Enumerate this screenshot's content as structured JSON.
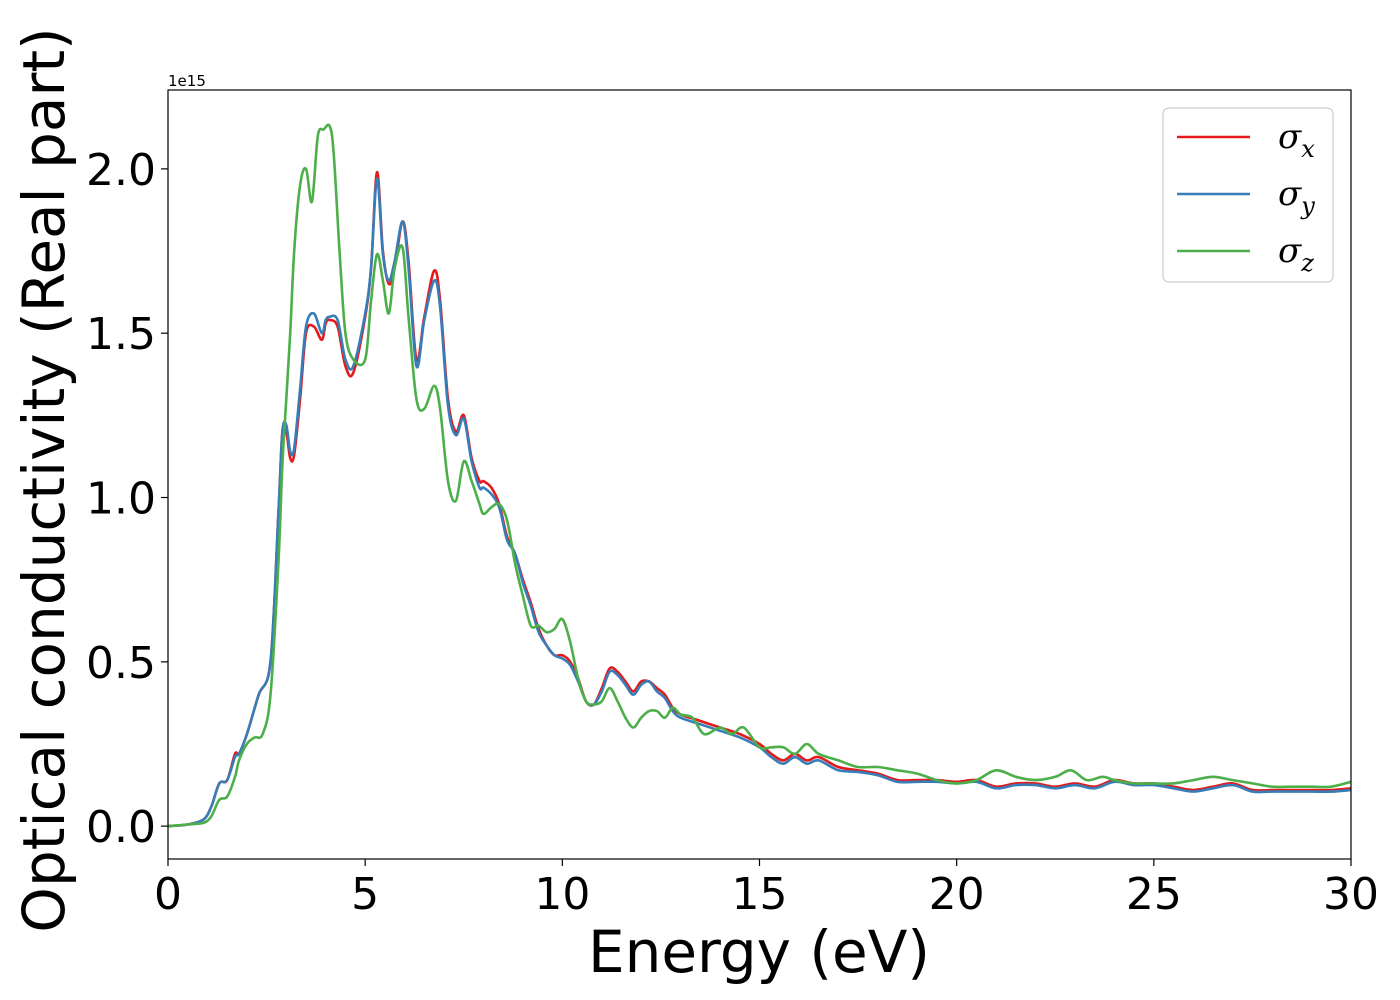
{
  "chart_data": {
    "type": "line",
    "xlabel": "Energy (eV)",
    "ylabel": "Optical conductivity (Real part)",
    "y_offset_text": "1e15",
    "xlim": [
      0,
      30
    ],
    "ylim": [
      -0.1,
      2.24
    ],
    "x_ticks": [
      0,
      5,
      10,
      15,
      20,
      25,
      30
    ],
    "x_tick_labels": [
      "0",
      "5",
      "10",
      "15",
      "20",
      "25",
      "30"
    ],
    "y_ticks": [
      0.0,
      0.5,
      1.0,
      1.5,
      2.0
    ],
    "y_tick_labels": [
      "0.0",
      "0.5",
      "1.0",
      "1.5",
      "2.0"
    ],
    "grid": false,
    "legend_position": "top-right",
    "series": [
      {
        "name": "σx",
        "legend_base": "σ",
        "legend_sub": "x",
        "color": "#e41a1c",
        "x": [
          0,
          0.5,
          0.9,
          1.1,
          1.3,
          1.5,
          1.7,
          1.8,
          2.0,
          2.3,
          2.6,
          2.8,
          2.9,
          3.0,
          3.1,
          3.2,
          3.35,
          3.5,
          3.7,
          3.9,
          4.0,
          4.1,
          4.3,
          4.5,
          4.7,
          5.0,
          5.15,
          5.3,
          5.45,
          5.6,
          5.75,
          5.95,
          6.1,
          6.3,
          6.5,
          6.75,
          6.9,
          7.1,
          7.3,
          7.5,
          7.7,
          7.9,
          8.0,
          8.2,
          8.4,
          8.6,
          8.8,
          9.0,
          9.2,
          9.4,
          9.6,
          9.8,
          10.0,
          10.2,
          10.4,
          10.6,
          10.8,
          11.0,
          11.2,
          11.4,
          11.6,
          11.8,
          12.0,
          12.2,
          12.4,
          12.6,
          12.8,
          13.0,
          13.5,
          14.0,
          14.5,
          15.0,
          15.3,
          15.6,
          15.9,
          16.2,
          16.5,
          17.0,
          17.5,
          18.0,
          18.5,
          19.0,
          19.5,
          20.0,
          20.5,
          21.0,
          21.5,
          22.0,
          22.5,
          23.0,
          23.5,
          24.0,
          24.5,
          25.0,
          25.5,
          26.0,
          26.5,
          27.0,
          27.5,
          28.0,
          28.5,
          29.0,
          29.5,
          30.0
        ],
        "values": [
          0.0,
          0.005,
          0.02,
          0.06,
          0.13,
          0.14,
          0.22,
          0.22,
          0.28,
          0.4,
          0.5,
          0.95,
          1.2,
          1.2,
          1.12,
          1.13,
          1.3,
          1.5,
          1.52,
          1.48,
          1.53,
          1.54,
          1.52,
          1.4,
          1.38,
          1.55,
          1.7,
          1.99,
          1.75,
          1.65,
          1.7,
          1.84,
          1.72,
          1.42,
          1.55,
          1.69,
          1.6,
          1.3,
          1.2,
          1.25,
          1.12,
          1.05,
          1.05,
          1.03,
          0.98,
          0.88,
          0.83,
          0.75,
          0.68,
          0.6,
          0.55,
          0.52,
          0.52,
          0.5,
          0.45,
          0.38,
          0.37,
          0.42,
          0.48,
          0.47,
          0.44,
          0.41,
          0.44,
          0.44,
          0.42,
          0.4,
          0.36,
          0.34,
          0.32,
          0.3,
          0.28,
          0.25,
          0.22,
          0.2,
          0.22,
          0.2,
          0.21,
          0.18,
          0.17,
          0.16,
          0.14,
          0.14,
          0.14,
          0.135,
          0.14,
          0.12,
          0.13,
          0.13,
          0.12,
          0.13,
          0.12,
          0.14,
          0.13,
          0.13,
          0.12,
          0.11,
          0.12,
          0.13,
          0.11,
          0.11,
          0.11,
          0.11,
          0.11,
          0.115
        ]
      },
      {
        "name": "σy",
        "legend_base": "σ",
        "legend_sub": "y",
        "color": "#377eb8",
        "x": [
          0,
          0.5,
          0.9,
          1.1,
          1.3,
          1.5,
          1.7,
          1.8,
          2.0,
          2.3,
          2.6,
          2.8,
          2.9,
          3.0,
          3.1,
          3.2,
          3.35,
          3.5,
          3.7,
          3.9,
          4.0,
          4.1,
          4.3,
          4.5,
          4.7,
          5.0,
          5.15,
          5.3,
          5.45,
          5.6,
          5.75,
          5.95,
          6.1,
          6.3,
          6.5,
          6.75,
          6.9,
          7.1,
          7.3,
          7.5,
          7.7,
          7.9,
          8.0,
          8.2,
          8.4,
          8.6,
          8.8,
          9.0,
          9.2,
          9.4,
          9.6,
          9.8,
          10.0,
          10.2,
          10.4,
          10.6,
          10.8,
          11.0,
          11.2,
          11.4,
          11.6,
          11.8,
          12.0,
          12.2,
          12.4,
          12.6,
          12.8,
          13.0,
          13.5,
          14.0,
          14.5,
          15.0,
          15.3,
          15.6,
          15.9,
          16.2,
          16.5,
          17.0,
          17.5,
          18.0,
          18.5,
          19.0,
          19.5,
          20.0,
          20.5,
          21.0,
          21.5,
          22.0,
          22.5,
          23.0,
          23.5,
          24.0,
          24.5,
          25.0,
          25.5,
          26.0,
          26.5,
          27.0,
          27.5,
          28.0,
          28.5,
          29.0,
          29.5,
          30.0
        ],
        "values": [
          0.0,
          0.005,
          0.02,
          0.06,
          0.13,
          0.14,
          0.21,
          0.22,
          0.28,
          0.4,
          0.5,
          0.95,
          1.2,
          1.22,
          1.14,
          1.15,
          1.33,
          1.52,
          1.56,
          1.5,
          1.54,
          1.55,
          1.54,
          1.42,
          1.4,
          1.56,
          1.7,
          1.97,
          1.74,
          1.66,
          1.72,
          1.84,
          1.7,
          1.4,
          1.54,
          1.66,
          1.58,
          1.28,
          1.19,
          1.24,
          1.11,
          1.03,
          1.03,
          1.01,
          0.97,
          0.87,
          0.83,
          0.74,
          0.67,
          0.59,
          0.55,
          0.52,
          0.51,
          0.49,
          0.44,
          0.38,
          0.37,
          0.41,
          0.47,
          0.46,
          0.43,
          0.4,
          0.43,
          0.44,
          0.41,
          0.39,
          0.35,
          0.33,
          0.31,
          0.29,
          0.27,
          0.24,
          0.21,
          0.19,
          0.21,
          0.19,
          0.2,
          0.17,
          0.165,
          0.155,
          0.135,
          0.135,
          0.135,
          0.13,
          0.135,
          0.115,
          0.125,
          0.125,
          0.115,
          0.125,
          0.115,
          0.135,
          0.125,
          0.125,
          0.115,
          0.105,
          0.115,
          0.125,
          0.105,
          0.105,
          0.105,
          0.105,
          0.105,
          0.11
        ]
      },
      {
        "name": "σz",
        "legend_base": "σ",
        "legend_sub": "z",
        "color": "#4daf4a",
        "x": [
          0,
          0.5,
          0.9,
          1.1,
          1.3,
          1.5,
          1.7,
          1.8,
          2.0,
          2.2,
          2.4,
          2.6,
          2.8,
          2.9,
          3.0,
          3.1,
          3.2,
          3.35,
          3.5,
          3.65,
          3.8,
          3.95,
          4.1,
          4.2,
          4.35,
          4.5,
          4.7,
          5.0,
          5.15,
          5.3,
          5.45,
          5.6,
          5.75,
          5.95,
          6.1,
          6.3,
          6.5,
          6.75,
          6.9,
          7.1,
          7.3,
          7.5,
          7.7,
          7.9,
          8.0,
          8.2,
          8.4,
          8.6,
          8.8,
          9.0,
          9.2,
          9.4,
          9.6,
          9.8,
          10.0,
          10.2,
          10.4,
          10.6,
          10.8,
          11.0,
          11.2,
          11.4,
          11.6,
          11.8,
          12.0,
          12.2,
          12.4,
          12.6,
          12.8,
          13.0,
          13.3,
          13.6,
          14.0,
          14.3,
          14.6,
          15.0,
          15.3,
          15.6,
          15.9,
          16.2,
          16.5,
          17.0,
          17.5,
          18.0,
          18.5,
          19.0,
          19.5,
          20.0,
          20.5,
          21.0,
          21.5,
          22.0,
          22.5,
          22.9,
          23.3,
          23.7,
          24.0,
          24.5,
          25.0,
          25.5,
          26.0,
          26.5,
          27.0,
          27.5,
          28.0,
          28.5,
          29.0,
          29.5,
          30.0
        ],
        "values": [
          0.0,
          0.005,
          0.01,
          0.03,
          0.08,
          0.09,
          0.15,
          0.2,
          0.25,
          0.27,
          0.28,
          0.4,
          0.8,
          1.1,
          1.3,
          1.5,
          1.75,
          1.95,
          2.0,
          1.9,
          2.1,
          2.12,
          2.13,
          2.05,
          1.75,
          1.5,
          1.42,
          1.42,
          1.6,
          1.74,
          1.66,
          1.56,
          1.7,
          1.76,
          1.55,
          1.3,
          1.27,
          1.34,
          1.27,
          1.05,
          0.99,
          1.11,
          1.05,
          0.98,
          0.95,
          0.97,
          0.98,
          0.93,
          0.8,
          0.7,
          0.61,
          0.61,
          0.59,
          0.6,
          0.63,
          0.56,
          0.45,
          0.38,
          0.37,
          0.38,
          0.42,
          0.38,
          0.33,
          0.3,
          0.33,
          0.35,
          0.35,
          0.33,
          0.36,
          0.34,
          0.33,
          0.28,
          0.3,
          0.28,
          0.3,
          0.24,
          0.24,
          0.24,
          0.22,
          0.25,
          0.22,
          0.2,
          0.18,
          0.18,
          0.17,
          0.16,
          0.14,
          0.13,
          0.14,
          0.17,
          0.15,
          0.14,
          0.15,
          0.17,
          0.14,
          0.15,
          0.14,
          0.13,
          0.13,
          0.13,
          0.14,
          0.15,
          0.14,
          0.13,
          0.12,
          0.12,
          0.12,
          0.12,
          0.135
        ]
      }
    ]
  }
}
